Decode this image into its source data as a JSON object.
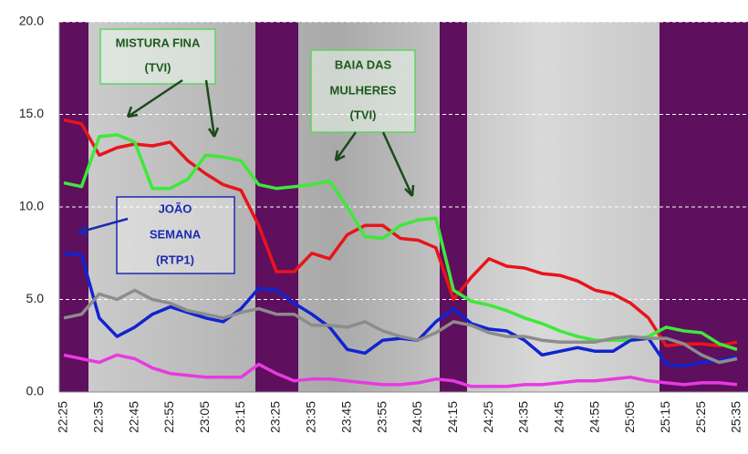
{
  "chart_data": {
    "type": "line",
    "categories": [
      "22:25",
      null,
      "22:35",
      null,
      "22:45",
      null,
      "22:55",
      null,
      "23:05",
      null,
      "23:15",
      null,
      "23:25",
      null,
      "23:35",
      null,
      "23:45",
      null,
      "23:55",
      null,
      "24:05",
      null,
      "24:15",
      null,
      "24:25",
      null,
      "24:35",
      null,
      "24:45",
      null,
      "24:55",
      null,
      "25:05",
      null,
      "25:15",
      null,
      "25:25",
      null,
      "25:35"
    ],
    "ylim": [
      0,
      20
    ],
    "yticks": [
      {
        "value": 0,
        "label": "0.0"
      },
      {
        "value": 5,
        "label": "5.0"
      },
      {
        "value": 10,
        "label": "10.0"
      },
      {
        "value": 15,
        "label": "15.0"
      },
      {
        "value": 20,
        "label": "20.0"
      }
    ],
    "grid": true,
    "series": [
      {
        "color": "#e8141c",
        "values": [
          14.7,
          14.5,
          12.8,
          13.2,
          13.4,
          13.3,
          13.5,
          12.5,
          11.8,
          11.2,
          10.9,
          9.0,
          6.5,
          6.5,
          7.5,
          7.2,
          8.5,
          9.0,
          9.0,
          8.3,
          8.2,
          7.8,
          5.0,
          6.2,
          7.2,
          6.8,
          6.7,
          6.4,
          6.3,
          6.0,
          5.5,
          5.3,
          4.8,
          4.0,
          2.5,
          2.6,
          2.6,
          2.5,
          2.7
        ]
      },
      {
        "color": "#3ee83a",
        "values": [
          11.3,
          11.1,
          13.8,
          13.9,
          13.5,
          11.0,
          11.0,
          11.5,
          12.8,
          12.7,
          12.5,
          11.2,
          11.0,
          11.1,
          11.2,
          11.4,
          10.0,
          8.4,
          8.3,
          9.0,
          9.3,
          9.4,
          5.5,
          4.9,
          4.7,
          4.4,
          4.0,
          3.7,
          3.3,
          3.0,
          2.8,
          2.8,
          2.8,
          3.0,
          3.5,
          3.3,
          3.2,
          2.6,
          2.3
        ]
      },
      {
        "color": "#1024d0",
        "values": [
          7.5,
          7.4,
          4.0,
          3.0,
          3.5,
          4.2,
          4.6,
          4.3,
          4.0,
          3.8,
          4.5,
          5.6,
          5.5,
          4.8,
          4.2,
          3.5,
          2.3,
          2.1,
          2.8,
          2.9,
          2.8,
          3.8,
          4.5,
          3.7,
          3.4,
          3.3,
          2.8,
          2.0,
          2.2,
          2.4,
          2.2,
          2.2,
          2.8,
          2.9,
          1.5,
          1.4,
          1.6,
          1.7,
          1.9
        ]
      },
      {
        "color": "#8c8c8c",
        "values": [
          4.0,
          4.2,
          5.3,
          5.0,
          5.5,
          5.0,
          4.8,
          4.4,
          4.2,
          4.0,
          4.3,
          4.5,
          4.2,
          4.2,
          3.6,
          3.6,
          3.5,
          3.8,
          3.3,
          3.0,
          2.8,
          3.2,
          3.8,
          3.6,
          3.2,
          3.0,
          3.0,
          2.8,
          2.7,
          2.7,
          2.7,
          2.9,
          3.0,
          2.9,
          2.9,
          2.6,
          2.0,
          1.6,
          1.8
        ]
      },
      {
        "color": "#e83ae0",
        "values": [
          2.0,
          1.8,
          1.6,
          2.0,
          1.8,
          1.3,
          1.0,
          0.9,
          0.8,
          0.8,
          0.8,
          1.5,
          1.0,
          0.6,
          0.7,
          0.7,
          0.6,
          0.5,
          0.4,
          0.4,
          0.5,
          0.7,
          0.6,
          0.3,
          0.3,
          0.3,
          0.4,
          0.4,
          0.5,
          0.6,
          0.6,
          0.7,
          0.8,
          0.6,
          0.5,
          0.4,
          0.5,
          0.5,
          0.4
        ]
      }
    ],
    "annotations": [
      {
        "lines": [
          "MISTURA FINA",
          "(TVI)"
        ]
      },
      {
        "lines": [
          "BAIA DAS",
          "MULHERES",
          "(TVI)"
        ]
      },
      {
        "lines": [
          "JOÃO",
          "SEMANA",
          "(RTP1)"
        ]
      }
    ]
  }
}
